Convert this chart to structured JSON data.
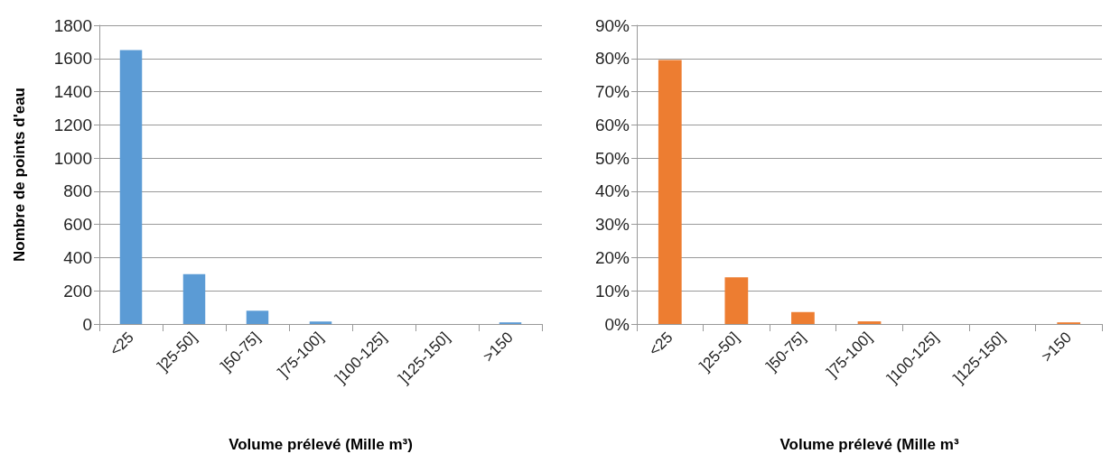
{
  "chart_data": [
    {
      "type": "bar",
      "xlabel": "Volume prélevé (Mille m³)",
      "ylabel": "Nombre de points d'eau",
      "categories": [
        "<25",
        "]25-50]",
        "]50-75]",
        "]75-100]",
        "]100-125]",
        "]125-150]",
        ">150"
      ],
      "series": [
        {
          "color": "#5b9bd5",
          "values": [
            1650,
            300,
            80,
            15,
            0,
            0,
            10
          ]
        }
      ],
      "ylim": [
        0,
        1800
      ],
      "yticks": [
        0,
        200,
        400,
        600,
        800,
        1000,
        1200,
        1400,
        1600,
        1800
      ],
      "grid": "y"
    },
    {
      "type": "bar",
      "xlabel": "Volume prélevé (Mille m³",
      "categories": [
        "<25",
        "]25-50]",
        "]50-75]",
        "]75-100]",
        "]100-125]",
        "]125-150]",
        ">150"
      ],
      "series": [
        {
          "color": "#ed7d31",
          "values": [
            79.5,
            14.1,
            3.6,
            0.8,
            0,
            0,
            0.5
          ]
        }
      ],
      "ylim": [
        0,
        90
      ],
      "yticks": [
        {
          "value": 0,
          "label": "0%"
        },
        {
          "value": 10,
          "label": "10%"
        },
        {
          "value": 20,
          "label": "20%"
        },
        {
          "value": 30,
          "label": "30%"
        },
        {
          "value": 40,
          "label": "40%"
        },
        {
          "value": 50,
          "label": "50%"
        },
        {
          "value": 60,
          "label": "60%"
        },
        {
          "value": 70,
          "label": "70%"
        },
        {
          "value": 80,
          "label": "80%"
        },
        {
          "value": 90,
          "label": "90%"
        }
      ],
      "grid": "y"
    }
  ]
}
